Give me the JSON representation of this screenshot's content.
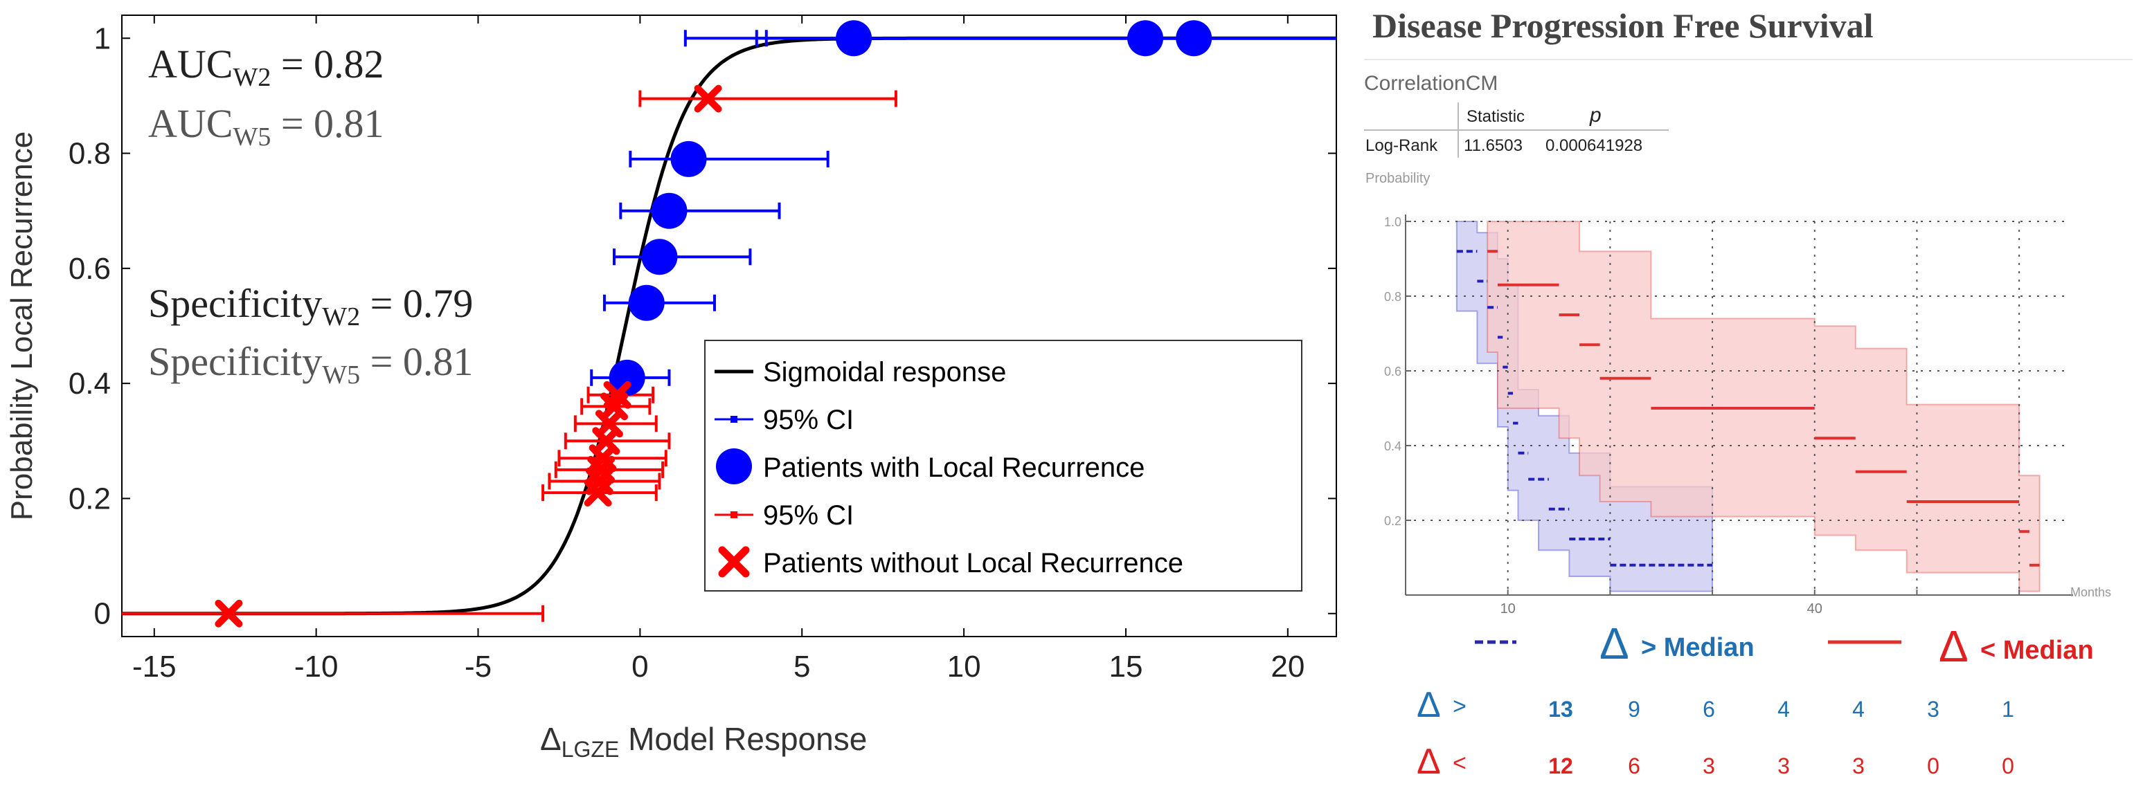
{
  "chart_data": [
    {
      "type": "scatter",
      "title": "",
      "xlabel_main": "Δ",
      "xlabel_sub": "LGZE",
      "xlabel_rest": " Model Response",
      "ylabel": "Probability Local Recurrence",
      "xlim": [
        -16,
        21.5
      ],
      "ylim": [
        -0.04,
        1.04
      ],
      "xticks": [
        -15,
        -10,
        -5,
        0,
        5,
        10,
        15,
        20
      ],
      "yticks": [
        0,
        0.2,
        0.4,
        0.6,
        0.8,
        1
      ],
      "xtick_labels": [
        "-15",
        "-10",
        "-5",
        "0",
        "5",
        "10",
        "15",
        "20"
      ],
      "ytick_labels": [
        "0",
        "0.2",
        "0.4",
        "0.6",
        "0.8",
        "1"
      ],
      "sigmoid": {
        "name": "Sigmoidal response",
        "midpoint": -0.45,
        "slope": 1.05
      },
      "recurrence": [
        {
          "x": -0.4,
          "y": 0.41,
          "ci": [
            -1.5,
            0.9
          ]
        },
        {
          "x": 0.2,
          "y": 0.54,
          "ci": [
            -1.1,
            2.3
          ]
        },
        {
          "x": 0.6,
          "y": 0.62,
          "ci": [
            -0.8,
            3.4
          ]
        },
        {
          "x": 0.9,
          "y": 0.7,
          "ci": [
            -0.6,
            4.3
          ]
        },
        {
          "x": 1.5,
          "y": 0.79,
          "ci": [
            -0.3,
            5.8
          ]
        },
        {
          "x": 6.6,
          "y": 1.0,
          "ci": [
            1.4,
            21.5
          ]
        },
        {
          "x": 15.6,
          "y": 1.0,
          "ci": [
            3.6,
            21.5
          ]
        },
        {
          "x": 17.1,
          "y": 1.0,
          "ci": [
            3.9,
            21.5
          ]
        }
      ],
      "no_recurrence": [
        {
          "x": -12.7,
          "y": 0.0,
          "ci": [
            -16,
            -3.0
          ]
        },
        {
          "x": -1.3,
          "y": 0.21,
          "ci": [
            -3.0,
            0.5
          ]
        },
        {
          "x": -1.25,
          "y": 0.23,
          "ci": [
            -2.8,
            0.6
          ]
        },
        {
          "x": -1.2,
          "y": 0.25,
          "ci": [
            -2.6,
            0.7
          ]
        },
        {
          "x": -1.15,
          "y": 0.27,
          "ci": [
            -2.5,
            0.8
          ]
        },
        {
          "x": -1.05,
          "y": 0.3,
          "ci": [
            -2.3,
            0.9
          ]
        },
        {
          "x": -0.95,
          "y": 0.33,
          "ci": [
            -2.0,
            0.5
          ]
        },
        {
          "x": -0.8,
          "y": 0.36,
          "ci": [
            -1.8,
            0.3
          ]
        },
        {
          "x": -0.7,
          "y": 0.38,
          "ci": [
            -1.6,
            0.4
          ]
        },
        {
          "x": 2.1,
          "y": 0.895,
          "ci": [
            0.0,
            7.9
          ]
        }
      ],
      "annotations": {
        "auc_w2_label": "AUC",
        "auc_w2_sub": "W2",
        "auc_w2_value": " = 0.82",
        "auc_w5_label": "AUC",
        "auc_w5_sub": "W5",
        "auc_w5_value": " = 0.81",
        "spec_w2_label": "Specificity",
        "spec_w2_sub": "W2",
        "spec_w2_value": " = 0.79",
        "spec_w5_label": "Specificity",
        "spec_w5_sub": "W5",
        "spec_w5_value": " = 0.81"
      },
      "legend": {
        "position": "bottom-right",
        "entries": [
          "Sigmoidal response",
          "95% CI",
          "Patients with Local Recurrence",
          "95% CI",
          "Patients without Local Recurrence"
        ]
      },
      "colors": {
        "recurrence": "#0000ff",
        "no_recurrence": "#ff0000",
        "sigmoid": "#000000"
      }
    },
    {
      "type": "line",
      "title": "Disease Progression Free Survival",
      "subtitle": "CorrelationCM",
      "stats_table": {
        "headers": [
          "",
          "Statistic",
          "p"
        ],
        "rows": [
          [
            "Log-Rank",
            "11.6503",
            "0.000641928"
          ]
        ]
      },
      "ylabel": "Probability",
      "xlabel": "Months",
      "xlim": [
        0,
        65
      ],
      "ylim": [
        0,
        1.0
      ],
      "yticks": [
        0.2,
        0.4,
        0.6,
        0.8,
        1.0
      ],
      "ytick_labels": [
        "0.2",
        "0.4",
        "0.6",
        "0.8",
        "1.0"
      ],
      "xticks": [
        10,
        40
      ],
      "xtick_labels": [
        "10",
        "40"
      ],
      "xgrid": [
        10,
        20,
        30,
        40,
        50,
        60
      ],
      "series": [
        {
          "name": "Δ > Median",
          "color": "#2020c0",
          "band_color": "#c8c8f0",
          "steps": [
            [
              5,
              7,
              0.92
            ],
            [
              7,
              8,
              0.84
            ],
            [
              8,
              9,
              0.77
            ],
            [
              9,
              9.5,
              0.69
            ],
            [
              9.5,
              10,
              0.61
            ],
            [
              10,
              10.5,
              0.54
            ],
            [
              10.5,
              11,
              0.46
            ],
            [
              11,
              12,
              0.38
            ],
            [
              12,
              14,
              0.31
            ],
            [
              14,
              16,
              0.23
            ],
            [
              16,
              20,
              0.15
            ],
            [
              20,
              30,
              0.08
            ]
          ],
          "upper": [
            [
              5,
              7,
              1.0
            ],
            [
              7,
              9,
              0.97
            ],
            [
              9,
              10,
              0.9
            ],
            [
              10,
              11,
              0.83
            ],
            [
              11,
              13,
              0.55
            ],
            [
              13,
              16,
              0.48
            ],
            [
              16,
              20,
              0.38
            ],
            [
              20,
              30,
              0.29
            ]
          ],
          "lower": [
            [
              5,
              7,
              0.76
            ],
            [
              7,
              9,
              0.62
            ],
            [
              9,
              10,
              0.45
            ],
            [
              10,
              11,
              0.28
            ],
            [
              11,
              13,
              0.2
            ],
            [
              13,
              16,
              0.12
            ],
            [
              16,
              20,
              0.05
            ],
            [
              20,
              30,
              0.01
            ]
          ]
        },
        {
          "name": "Δ < Median",
          "color": "#e03030",
          "band_color": "#f8c8c8",
          "steps": [
            [
              8,
              9,
              0.92
            ],
            [
              9,
              15,
              0.83
            ],
            [
              15,
              17,
              0.75
            ],
            [
              17,
              19,
              0.67
            ],
            [
              19,
              24,
              0.58
            ],
            [
              24,
              40,
              0.5
            ],
            [
              40,
              44,
              0.42
            ],
            [
              44,
              49,
              0.33
            ],
            [
              49,
              60,
              0.25
            ],
            [
              60,
              61,
              0.17
            ],
            [
              61,
              62,
              0.08
            ]
          ],
          "upper": [
            [
              8,
              17,
              1.0
            ],
            [
              17,
              24,
              0.92
            ],
            [
              24,
              40,
              0.74
            ],
            [
              40,
              44,
              0.72
            ],
            [
              44,
              49,
              0.66
            ],
            [
              49,
              60,
              0.51
            ],
            [
              60,
              62,
              0.32
            ]
          ],
          "lower": [
            [
              8,
              9,
              0.65
            ],
            [
              9,
              15,
              0.5
            ],
            [
              15,
              17,
              0.42
            ],
            [
              17,
              19,
              0.32
            ],
            [
              19,
              24,
              0.25
            ],
            [
              24,
              40,
              0.21
            ],
            [
              40,
              44,
              0.16
            ],
            [
              44,
              49,
              0.12
            ],
            [
              49,
              60,
              0.06
            ],
            [
              60,
              62,
              0.01
            ]
          ]
        }
      ],
      "legend": [
        {
          "symbol": "Δ",
          "text": "> Median",
          "color": "#1f6fb2"
        },
        {
          "symbol": "Δ",
          "text": "< Median",
          "color": "#e02020"
        }
      ],
      "risk_table": [
        {
          "label_symbol": "Δ",
          "label_op": ">",
          "color": "#1f6fb2",
          "values": [
            "13",
            "9",
            "6",
            "4",
            "4",
            "3",
            "1"
          ]
        },
        {
          "label_symbol": "Δ",
          "label_op": "<",
          "color": "#e02020",
          "values": [
            "12",
            "6",
            "3",
            "3",
            "3",
            "0",
            "0"
          ]
        }
      ]
    }
  ]
}
